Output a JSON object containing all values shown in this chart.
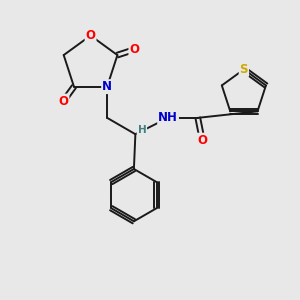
{
  "background_color": "#e8e8e8",
  "bond_color": "#1a1a1a",
  "atom_colors": {
    "O": "#ff0000",
    "N": "#0000cc",
    "S": "#ccaa00",
    "C": "#1a1a1a",
    "H": "#408080"
  },
  "figsize": [
    3.0,
    3.0
  ],
  "dpi": 100
}
